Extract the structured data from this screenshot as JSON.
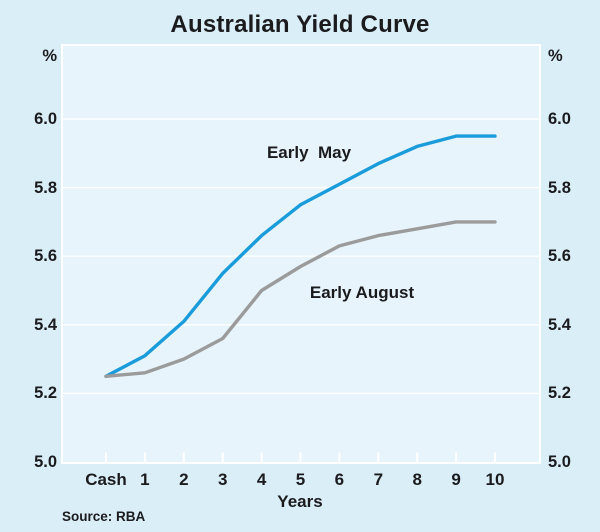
{
  "header": {
    "title": "Australian Yield Curve"
  },
  "axis": {
    "unit_left": "%",
    "unit_right": "%",
    "xlabel": "Years"
  },
  "footer": {
    "source": "Source: RBA"
  },
  "chart_data": {
    "type": "line",
    "title": "Australian Yield Curve",
    "x_categories": [
      "Cash",
      "1",
      "2",
      "3",
      "4",
      "5",
      "6",
      "7",
      "8",
      "9",
      "10"
    ],
    "xlabel": "Years",
    "y_unit": "%",
    "ylim": [
      5.0,
      6.21
    ],
    "y_ticks": [
      5.0,
      5.2,
      5.4,
      5.6,
      5.8,
      6.0
    ],
    "y_tick_labels": [
      "5.0",
      "5.2",
      "5.4",
      "5.6",
      "5.8",
      "6.0"
    ],
    "y_axis_sides": "both",
    "grid": true,
    "grid_color": "#ffffff",
    "plot_bg": "#e7f4fb",
    "page_bg": "#daeef8",
    "series": [
      {
        "name": "Early  May",
        "color": "#1a9cdb",
        "values": [
          5.25,
          5.31,
          5.41,
          5.55,
          5.66,
          5.75,
          5.81,
          5.87,
          5.92,
          5.95,
          5.95
        ],
        "label_anchor": {
          "x": 309,
          "y": 153
        }
      },
      {
        "name": "Early August",
        "color": "#9b9b9b",
        "values": [
          5.25,
          5.26,
          5.3,
          5.36,
          5.5,
          5.57,
          5.63,
          5.66,
          5.68,
          5.7,
          5.7
        ],
        "label_anchor": {
          "x": 362,
          "y": 293
        }
      }
    ],
    "source": "Source: RBA"
  }
}
